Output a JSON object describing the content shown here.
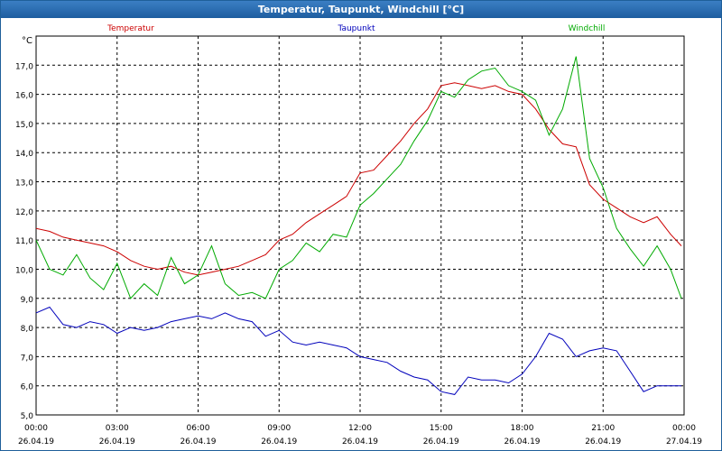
{
  "window_title": "Temperatur, Taupunkt, Windchill [°C]",
  "chart_data": {
    "type": "line",
    "title": "Temperatur, Taupunkt, Windchill [°C]",
    "ylabel": "°C",
    "ylim": [
      5.0,
      18.0
    ],
    "yticks": [
      "5,0",
      "6,0",
      "7,0",
      "8,0",
      "9,0",
      "10,0",
      "11,0",
      "12,0",
      "13,0",
      "14,0",
      "15,0",
      "16,0",
      "17,0"
    ],
    "xlim": [
      0,
      24
    ],
    "xticks": [
      {
        "time": "00:00",
        "date": "26.04.19"
      },
      {
        "time": "03:00",
        "date": "26.04.19"
      },
      {
        "time": "06:00",
        "date": "26.04.19"
      },
      {
        "time": "09:00",
        "date": "26.04.19"
      },
      {
        "time": "12:00",
        "date": "26.04.19"
      },
      {
        "time": "15:00",
        "date": "26.04.19"
      },
      {
        "time": "18:00",
        "date": "26.04.19"
      },
      {
        "time": "21:00",
        "date": "26.04.19"
      },
      {
        "time": "00:00",
        "date": "27.04.19"
      }
    ],
    "x": [
      0,
      0.5,
      1,
      1.5,
      2,
      2.5,
      3,
      3.5,
      4,
      4.5,
      5,
      5.5,
      6,
      6.5,
      7,
      7.5,
      8,
      8.5,
      9,
      9.5,
      10,
      10.5,
      11,
      11.5,
      12,
      12.5,
      13,
      13.5,
      14,
      14.5,
      15,
      15.5,
      16,
      16.5,
      17,
      17.5,
      18,
      18.5,
      19,
      19.5,
      20,
      20.5,
      21,
      21.5,
      22,
      22.5,
      23,
      23.5,
      23.9
    ],
    "series": [
      {
        "name": "Temperatur",
        "color": "#cc0000",
        "values": [
          11.4,
          11.3,
          11.1,
          11.0,
          10.9,
          10.8,
          10.6,
          10.3,
          10.1,
          10.0,
          10.1,
          9.9,
          9.8,
          9.9,
          10.0,
          10.1,
          10.3,
          10.5,
          11.0,
          11.2,
          11.6,
          11.9,
          12.2,
          12.5,
          13.3,
          13.4,
          13.9,
          14.4,
          15.0,
          15.5,
          16.3,
          16.4,
          16.3,
          16.2,
          16.3,
          16.1,
          16.0,
          15.5,
          14.8,
          14.3,
          14.2,
          12.9,
          12.4,
          12.1,
          11.8,
          11.6,
          11.8,
          11.2,
          10.8
        ]
      },
      {
        "name": "Taupunkt",
        "color": "#0000bb",
        "values": [
          8.5,
          8.7,
          8.1,
          8.0,
          8.2,
          8.1,
          7.8,
          8.0,
          7.9,
          8.0,
          8.2,
          8.3,
          8.4,
          8.3,
          8.5,
          8.3,
          8.2,
          7.7,
          7.9,
          7.5,
          7.4,
          7.5,
          7.4,
          7.3,
          7.0,
          6.9,
          6.8,
          6.5,
          6.3,
          6.2,
          5.8,
          5.7,
          6.3,
          6.2,
          6.2,
          6.1,
          6.4,
          7.0,
          7.8,
          7.6,
          7.0,
          7.2,
          7.3,
          7.2,
          6.5,
          5.8,
          6.0,
          6.0,
          6.0
        ]
      },
      {
        "name": "Windchill",
        "color": "#00aa00",
        "values": [
          11.0,
          10.0,
          9.8,
          10.5,
          9.7,
          9.3,
          10.2,
          9.0,
          9.5,
          9.1,
          10.4,
          9.5,
          9.8,
          10.8,
          9.5,
          9.1,
          9.2,
          9.0,
          10.0,
          10.3,
          10.9,
          10.6,
          11.2,
          11.1,
          12.2,
          12.6,
          13.1,
          13.6,
          14.4,
          15.1,
          16.1,
          15.9,
          16.5,
          16.8,
          16.9,
          16.3,
          16.1,
          15.8,
          14.6,
          15.5,
          17.3,
          13.8,
          12.8,
          11.4,
          10.7,
          10.1,
          10.8,
          10.0,
          9.0
        ]
      }
    ]
  }
}
